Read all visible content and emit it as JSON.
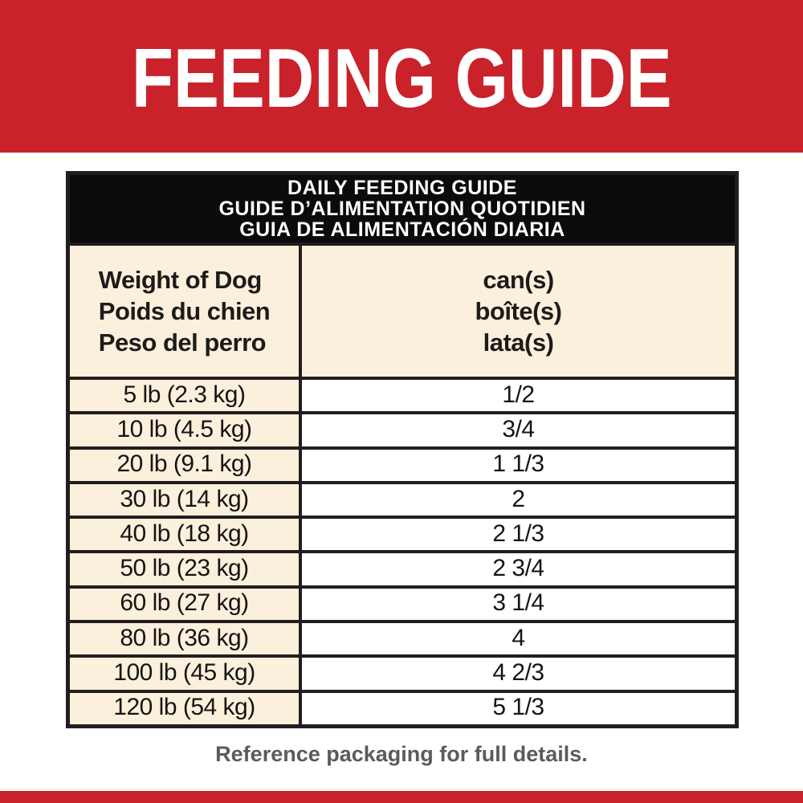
{
  "banner": {
    "title": "FEEDING GUIDE",
    "bg_color": "#c9222a",
    "text_color": "#ffffff"
  },
  "table": {
    "title_lines": [
      "DAILY FEEDING GUIDE",
      "GUIDE D’ALIMENTATION QUOTIDIEN",
      "GUIA DE ALIMENTACIÓN DIARIA"
    ],
    "weight_header_lines": [
      "Weight of Dog",
      "Poids du chien",
      "Peso del perro"
    ],
    "amount_header_lines": [
      "can(s)",
      "boîte(s)",
      "lata(s)"
    ],
    "rows": [
      {
        "weight": "5 lb (2.3 kg)",
        "cans": "1/2"
      },
      {
        "weight": "10 lb (4.5 kg)",
        "cans": "3/4"
      },
      {
        "weight": "20 lb (9.1 kg)",
        "cans": "1 1/3"
      },
      {
        "weight": "30 lb (14 kg)",
        "cans": "2"
      },
      {
        "weight": "40 lb (18 kg)",
        "cans": "2 1/3"
      },
      {
        "weight": "50 lb (23 kg)",
        "cans": "2 3/4"
      },
      {
        "weight": "60 lb (27 kg)",
        "cans": "3 1/4"
      },
      {
        "weight": "80 lb (36 kg)",
        "cans": "4"
      },
      {
        "weight": "100 lb (45 kg)",
        "cans": "4 2/3"
      },
      {
        "weight": "120 lb (54 kg)",
        "cans": "5 1/3"
      }
    ],
    "header_bg": "#0b0b0b",
    "cell_cream": "#faf0dc",
    "cell_white": "#ffffff",
    "border_color": "#221e1f"
  },
  "footer": {
    "note": "Reference packaging for full details.",
    "text_color": "#5b5b5d"
  }
}
